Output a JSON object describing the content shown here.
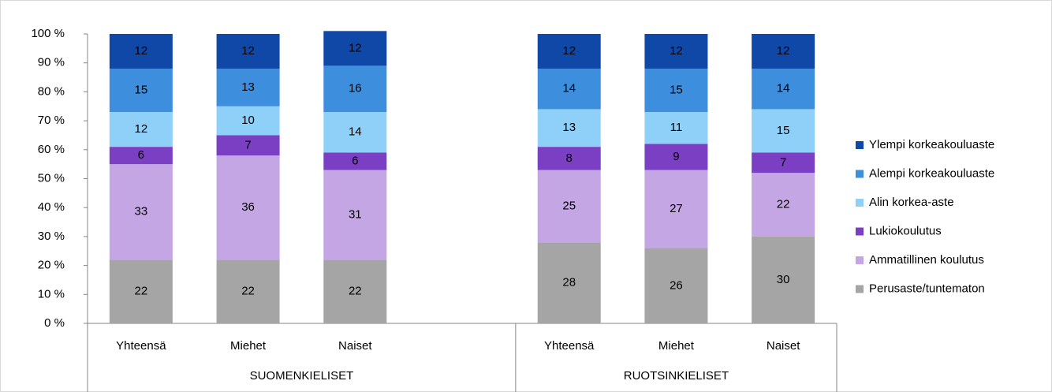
{
  "chart_data": {
    "type": "stacked_bar",
    "categories": [
      "Yhteensä",
      "Miehet",
      "Naiset",
      null,
      "Yhteensä",
      "Miehet",
      "Naiset"
    ],
    "groups": [
      "SUOMENKIELISET",
      "RUOTSINKIELISET"
    ],
    "series": [
      {
        "name": "Perusaste/tuntematon",
        "color": "#a5a5a5",
        "values": [
          22,
          22,
          22,
          null,
          28,
          26,
          30
        ]
      },
      {
        "name": "Ammatillinen koulutus",
        "color": "#c4a6e4",
        "values": [
          33,
          36,
          31,
          null,
          25,
          27,
          22
        ]
      },
      {
        "name": "Lukiokoulutus",
        "color": "#7b3fc4",
        "values": [
          6,
          7,
          6,
          null,
          8,
          9,
          7
        ]
      },
      {
        "name": "Alin korkea-aste",
        "color": "#8fd0f8",
        "values": [
          12,
          10,
          14,
          null,
          13,
          11,
          15
        ]
      },
      {
        "name": "Alempi korkeakouluaste",
        "color": "#3e8ede",
        "values": [
          15,
          13,
          16,
          null,
          14,
          15,
          14
        ]
      },
      {
        "name": "Ylempi korkeakouluaste",
        "color": "#1048a8",
        "values": [
          12,
          12,
          12,
          null,
          12,
          12,
          12
        ]
      }
    ],
    "ylim": [
      0,
      100
    ],
    "yticks": [
      {
        "value": 0,
        "label": "0 %"
      },
      {
        "value": 10,
        "label": "10 %"
      },
      {
        "value": 20,
        "label": "20 %"
      },
      {
        "value": 30,
        "label": "30 %"
      },
      {
        "value": 40,
        "label": "40 %"
      },
      {
        "value": 50,
        "label": "50 %"
      },
      {
        "value": 60,
        "label": "60 %"
      },
      {
        "value": 70,
        "label": "70 %"
      },
      {
        "value": 80,
        "label": "80 %"
      },
      {
        "value": 90,
        "label": "90 %"
      },
      {
        "value": 100,
        "label": "100 %"
      }
    ],
    "legend": "right",
    "grid": false
  }
}
